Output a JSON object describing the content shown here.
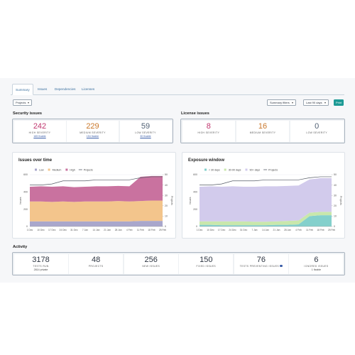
{
  "tabs": [
    "Summary",
    "Issues",
    "Dependencies",
    "Licenses"
  ],
  "toolbar": {
    "projects": "Projects",
    "filters": "Summary filters",
    "range": "Last 90 days",
    "print": "Print"
  },
  "security_issues": {
    "title": "Security issues",
    "cells": [
      {
        "value": 242,
        "label": "HIGH SEVERITY",
        "sub": "165 fixable",
        "color": "#c0366f"
      },
      {
        "value": 229,
        "label": "MEDIUM SEVERITY",
        "sub": "154 fixable",
        "color": "#c9772a"
      },
      {
        "value": 59,
        "label": "LOW SEVERITY",
        "sub": "30 fixable",
        "color": "#4f5f73"
      }
    ]
  },
  "license_issues": {
    "title": "License issues",
    "cells": [
      {
        "value": 8,
        "label": "HIGH SEVERITY",
        "color": "#c0366f"
      },
      {
        "value": 16,
        "label": "MEDIUM SEVERITY",
        "color": "#c9772a"
      },
      {
        "value": 0,
        "label": "LOW SEVERITY",
        "color": "#4f5f73"
      }
    ]
  },
  "activity": {
    "title": "Activity",
    "cells": [
      {
        "value": 3178,
        "label": "TESTS RUN",
        "sub": "2814 private"
      },
      {
        "value": 48,
        "label": "PROJECTS"
      },
      {
        "value": 256,
        "label": "NEW ISSUES"
      },
      {
        "value": 150,
        "label": "FIXED ISSUES"
      },
      {
        "value": 76,
        "label": "TESTS PREVENTING ISSUES"
      },
      {
        "value": 6,
        "label": "IGNORED ISSUES",
        "sub": "1 fixable"
      }
    ]
  },
  "chart_data": [
    {
      "type": "area",
      "title": "Issues over time",
      "ylabel": "Issues",
      "y2label": "Projects",
      "categories": [
        "1 Dec",
        "10 Dec",
        "17 Dec",
        "24 Dec",
        "31 Dec",
        "7 Jan",
        "14 Jan",
        "21 Jan",
        "28 Jan",
        "4 Feb",
        "11 Feb",
        "18 Feb",
        "25 Feb"
      ],
      "series": [
        {
          "name": "Low",
          "color": "#a9a7cc",
          "values": [
            60,
            60,
            60,
            60,
            60,
            60,
            60,
            60,
            60,
            60,
            65,
            65,
            65
          ]
        },
        {
          "name": "Medium",
          "color": "#f3c58c",
          "values": [
            230,
            230,
            225,
            230,
            225,
            230,
            230,
            230,
            235,
            230,
            230,
            235,
            235
          ]
        },
        {
          "name": "High",
          "color": "#c9729f",
          "values": [
            170,
            175,
            175,
            175,
            170,
            170,
            175,
            175,
            175,
            175,
            280,
            285,
            285
          ]
        },
        {
          "name": "Projects",
          "color": "#555b66",
          "type": "line",
          "axis": "y2",
          "values": [
            40,
            40,
            41,
            44,
            44,
            44,
            45,
            45,
            45,
            45,
            47,
            48,
            48
          ]
        }
      ],
      "ylim": [
        0,
        600
      ],
      "yticks": [
        0,
        200,
        400,
        600
      ],
      "y2lim": [
        0,
        50
      ],
      "y2ticks": [
        0,
        10,
        20,
        30,
        40,
        50
      ],
      "grid": true
    },
    {
      "type": "area",
      "title": "Exposure window",
      "ylabel": "Issues",
      "y2label": "Projects",
      "categories": [
        "1 Dec",
        "10 Dec",
        "17 Dec",
        "24 Dec",
        "31 Dec",
        "7 Jan",
        "14 Jan",
        "21 Jan",
        "28 Jan",
        "4 Feb",
        "11 Feb",
        "18 Feb",
        "25 Feb"
      ],
      "series": [
        {
          "name": "< 30 days",
          "color": "#84d0cc",
          "values": [
            20,
            20,
            15,
            15,
            15,
            15,
            15,
            20,
            20,
            25,
            120,
            130,
            130
          ]
        },
        {
          "name": "30-90 days",
          "color": "#c9e7ac",
          "values": [
            40,
            40,
            45,
            45,
            45,
            40,
            40,
            40,
            45,
            45,
            40,
            40,
            40
          ]
        },
        {
          "name": "90+ days",
          "color": "#d2cbec",
          "values": [
            400,
            405,
            400,
            405,
            400,
            405,
            410,
            405,
            405,
            405,
            385,
            390,
            390
          ]
        },
        {
          "name": "Projects",
          "color": "#555b66",
          "type": "line",
          "axis": "y2",
          "values": [
            40,
            40,
            41,
            44,
            44,
            44,
            45,
            45,
            45,
            45,
            47,
            48,
            48
          ]
        }
      ],
      "ylim": [
        0,
        600
      ],
      "yticks": [
        0,
        200,
        400,
        600
      ],
      "y2lim": [
        0,
        50
      ],
      "y2ticks": [
        0,
        10,
        20,
        30,
        40,
        50
      ],
      "grid": true
    }
  ]
}
